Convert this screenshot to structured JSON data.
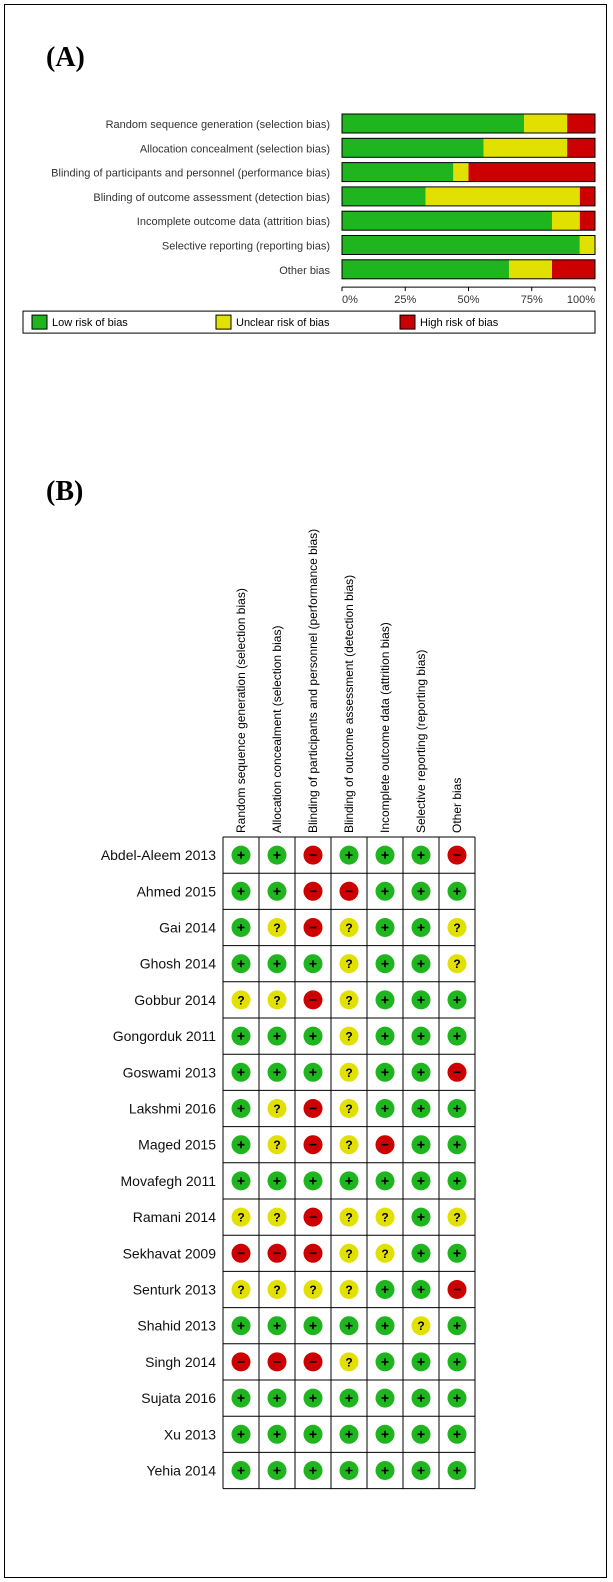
{
  "panel_a_label": "(A)",
  "panel_b_label": "(B)",
  "colors": {
    "low": "#1fb51f",
    "unclear": "#e2e000",
    "high": "#cc0000"
  },
  "icon_names": {
    "low": "plus-icon",
    "unclear": "question-icon",
    "high": "minus-icon"
  },
  "chart_data": [
    {
      "type": "bar",
      "orientation": "horizontal",
      "stacked": true,
      "categories": [
        "Random sequence generation (selection bias)",
        "Allocation concealment (selection bias)",
        "Blinding of participants and personnel (performance bias)",
        "Blinding of outcome assessment (detection bias)",
        "Incomplete outcome data (attrition bias)",
        "Selective reporting (reporting bias)",
        "Other bias"
      ],
      "series": [
        {
          "name": "Low risk of bias",
          "values": [
            72,
            56,
            44,
            33,
            83,
            94,
            66
          ]
        },
        {
          "name": "Unclear risk of bias",
          "values": [
            17,
            33,
            6,
            61,
            11,
            6,
            17
          ]
        },
        {
          "name": "High risk of bias",
          "values": [
            11,
            11,
            50,
            6,
            6,
            0,
            17
          ]
        }
      ],
      "xticks": [
        "0%",
        "25%",
        "50%",
        "75%",
        "100%"
      ],
      "xlim": [
        0,
        100
      ],
      "legend_position": "bottom"
    },
    {
      "type": "table",
      "columns": [
        "Random sequence generation (selection bias)",
        "Allocation concealment (selection bias)",
        "Blinding of participants and personnel (performance bias)",
        "Blinding of outcome assessment (detection bias)",
        "Incomplete outcome data (attrition bias)",
        "Selective reporting (reporting bias)",
        "Other bias"
      ],
      "rows": [
        {
          "study": "Abdel-Aleem 2013",
          "judgements": [
            "low",
            "low",
            "high",
            "low",
            "low",
            "low",
            "high"
          ]
        },
        {
          "study": "Ahmed 2015",
          "judgements": [
            "low",
            "low",
            "high",
            "high",
            "low",
            "low",
            "low"
          ]
        },
        {
          "study": "Gai 2014",
          "judgements": [
            "low",
            "unclear",
            "high",
            "unclear",
            "low",
            "low",
            "unclear"
          ]
        },
        {
          "study": "Ghosh 2014",
          "judgements": [
            "low",
            "low",
            "low",
            "unclear",
            "low",
            "low",
            "unclear"
          ]
        },
        {
          "study": "Gobbur 2014",
          "judgements": [
            "unclear",
            "unclear",
            "high",
            "unclear",
            "low",
            "low",
            "low"
          ]
        },
        {
          "study": "Gongorduk 2011",
          "judgements": [
            "low",
            "low",
            "low",
            "unclear",
            "low",
            "low",
            "low"
          ]
        },
        {
          "study": "Goswami 2013",
          "judgements": [
            "low",
            "low",
            "low",
            "unclear",
            "low",
            "low",
            "high"
          ]
        },
        {
          "study": "Lakshmi 2016",
          "judgements": [
            "low",
            "unclear",
            "high",
            "unclear",
            "low",
            "low",
            "low"
          ]
        },
        {
          "study": "Maged 2015",
          "judgements": [
            "low",
            "unclear",
            "high",
            "unclear",
            "high",
            "low",
            "low"
          ]
        },
        {
          "study": "Movafegh 2011",
          "judgements": [
            "low",
            "low",
            "low",
            "low",
            "low",
            "low",
            "low"
          ]
        },
        {
          "study": "Ramani 2014",
          "judgements": [
            "unclear",
            "unclear",
            "high",
            "unclear",
            "unclear",
            "low",
            "unclear"
          ]
        },
        {
          "study": "Sekhavat 2009",
          "judgements": [
            "high",
            "high",
            "high",
            "unclear",
            "unclear",
            "low",
            "low"
          ]
        },
        {
          "study": "Senturk 2013",
          "judgements": [
            "unclear",
            "unclear",
            "unclear",
            "unclear",
            "low",
            "low",
            "high"
          ]
        },
        {
          "study": "Shahid 2013",
          "judgements": [
            "low",
            "low",
            "low",
            "low",
            "low",
            "unclear",
            "low"
          ]
        },
        {
          "study": "Singh 2014",
          "judgements": [
            "high",
            "high",
            "high",
            "unclear",
            "low",
            "low",
            "low"
          ]
        },
        {
          "study": "Sujata 2016",
          "judgements": [
            "low",
            "low",
            "low",
            "low",
            "low",
            "low",
            "low"
          ]
        },
        {
          "study": "Xu 2013",
          "judgements": [
            "low",
            "low",
            "low",
            "low",
            "low",
            "low",
            "low"
          ]
        },
        {
          "study": "Yehia 2014",
          "judgements": [
            "low",
            "low",
            "low",
            "low",
            "low",
            "low",
            "low"
          ]
        }
      ]
    }
  ]
}
